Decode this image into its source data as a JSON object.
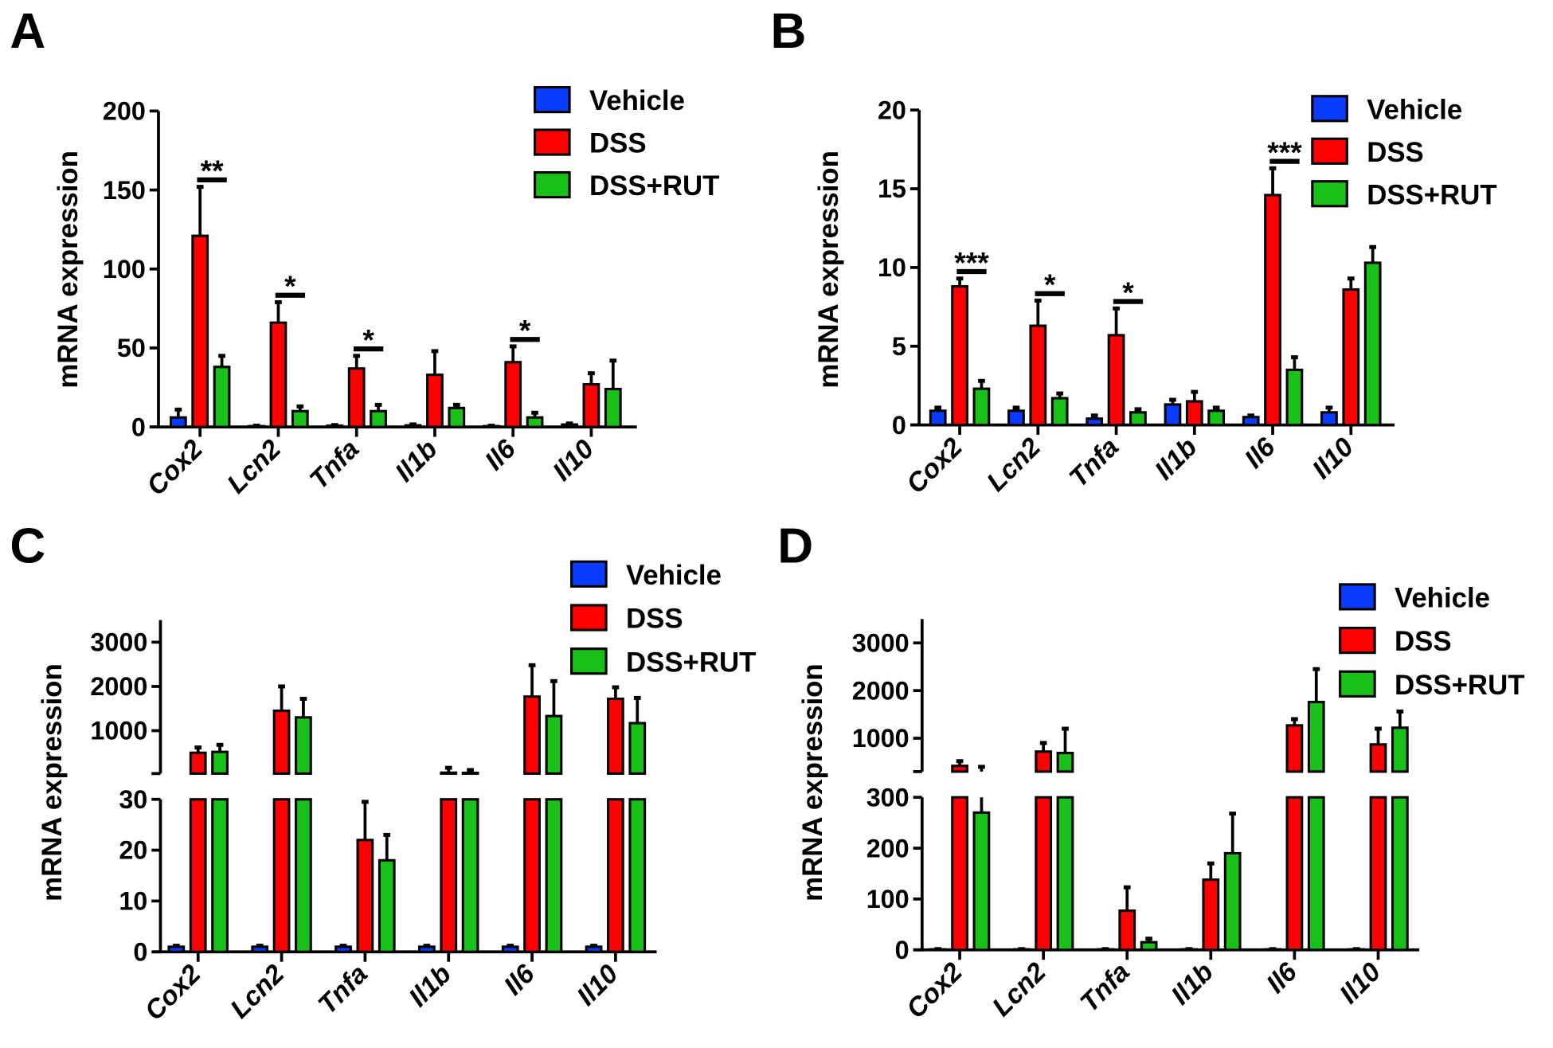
{
  "colors": {
    "Vehicle": "#0a3cff",
    "DSS": "#ff0000",
    "DSS+RUT": "#18c018",
    "axis": "#000000"
  },
  "legend": [
    "Vehicle",
    "DSS",
    "DSS+RUT"
  ],
  "chart_data": [
    {
      "panel": "A",
      "type": "bar",
      "ylabel": "mRNA expression",
      "categories": [
        "Cox2",
        "Lcn2",
        "Tnfa",
        "Il1b",
        "Il6",
        "Il10"
      ],
      "segments": [
        {
          "range": [
            0,
            200
          ],
          "ticks": [
            0,
            50,
            100,
            150,
            200
          ]
        }
      ],
      "series": [
        {
          "name": "Vehicle",
          "values": [
            6,
            0.5,
            0.8,
            1,
            0.5,
            1.5
          ],
          "error_top": [
            11,
            0.8,
            1.2,
            1.6,
            0.8,
            2.2
          ]
        },
        {
          "name": "DSS",
          "values": [
            121,
            66,
            37,
            33,
            41,
            27
          ],
          "error_top": [
            152,
            79,
            45,
            48,
            51,
            34
          ]
        },
        {
          "name": "DSS+RUT",
          "values": [
            38,
            10,
            10,
            12,
            6,
            24
          ],
          "error_top": [
            45,
            13,
            14,
            14,
            9,
            42
          ]
        }
      ],
      "significance": [
        {
          "category": "Cox2",
          "label": "**"
        },
        {
          "category": "Lcn2",
          "label": "*"
        },
        {
          "category": "Tnfa",
          "label": "*"
        },
        {
          "category": "Il6",
          "label": "*"
        }
      ]
    },
    {
      "panel": "B",
      "type": "bar",
      "ylabel": "mRNA expression",
      "categories": [
        "Cox2",
        "Lcn2",
        "Tnfa",
        "Il1b",
        "Il6",
        "Il10"
      ],
      "segments": [
        {
          "range": [
            0,
            20
          ],
          "ticks": [
            0,
            5,
            10,
            15,
            20
          ]
        }
      ],
      "series": [
        {
          "name": "Vehicle",
          "values": [
            0.9,
            0.9,
            0.4,
            1.3,
            0.5,
            0.8
          ],
          "error_top": [
            1.1,
            1.1,
            0.6,
            1.6,
            0.6,
            1.1
          ]
        },
        {
          "name": "DSS",
          "values": [
            8.8,
            6.3,
            5.7,
            1.5,
            14.6,
            8.6
          ],
          "error_top": [
            9.3,
            7.9,
            7.4,
            2.1,
            16.3,
            9.3
          ]
        },
        {
          "name": "DSS+RUT",
          "values": [
            2.3,
            1.7,
            0.8,
            0.9,
            3.5,
            10.3
          ],
          "error_top": [
            2.8,
            2.0,
            1.0,
            1.1,
            4.3,
            11.3
          ]
        }
      ],
      "significance": [
        {
          "category": "Cox2",
          "label": "***"
        },
        {
          "category": "Lcn2",
          "label": "*"
        },
        {
          "category": "Tnfa",
          "label": "*"
        },
        {
          "category": "Il6",
          "label": "***"
        }
      ]
    },
    {
      "panel": "C",
      "type": "bar",
      "ylabel": "mRNA expression",
      "axis_break": true,
      "categories": [
        "Cox2",
        "Lcn2",
        "Tnfa",
        "Il1b",
        "Il6",
        "Il10"
      ],
      "segments": [
        {
          "range": [
            0,
            30
          ],
          "ticks": [
            0,
            10,
            20,
            30
          ]
        },
        {
          "range": [
            30,
            3500
          ],
          "ticks": [
            1000,
            2000,
            3000
          ]
        }
      ],
      "series": [
        {
          "name": "Vehicle",
          "values": [
            1,
            1,
            1,
            1,
            1,
            1
          ],
          "error_top": [
            1.2,
            1.2,
            1.2,
            1.2,
            1.2,
            1.2
          ]
        },
        {
          "name": "DSS",
          "values": [
            500,
            1450,
            22,
            50,
            1770,
            1720
          ],
          "error_top": [
            620,
            2000,
            29.5,
            160,
            2480,
            1980
          ]
        },
        {
          "name": "DSS+RUT",
          "values": [
            520,
            1300,
            18,
            45,
            1330,
            1170
          ],
          "error_top": [
            680,
            1720,
            23,
            110,
            2120,
            1740
          ]
        }
      ],
      "significance": []
    },
    {
      "panel": "D",
      "type": "bar",
      "ylabel": "mRNA expression",
      "axis_break": true,
      "categories": [
        "Cox2",
        "Lcn2",
        "Tnfa",
        "Il1b",
        "Il6",
        "Il10"
      ],
      "segments": [
        {
          "range": [
            0,
            300
          ],
          "ticks": [
            0,
            100,
            200,
            300
          ]
        },
        {
          "range": [
            300,
            3500
          ],
          "ticks": [
            1000,
            2000,
            3000
          ]
        }
      ],
      "series": [
        {
          "name": "Vehicle",
          "values": [
            1,
            1,
            1,
            1,
            1,
            1
          ],
          "error_top": [
            1.5,
            1.5,
            1.5,
            1.5,
            1.5,
            1.5
          ]
        },
        {
          "name": "DSS",
          "values": [
            420,
            720,
            77,
            138,
            1270,
            870
          ],
          "error_top": [
            520,
            900,
            123,
            170,
            1400,
            1200
          ]
        },
        {
          "name": "DSS+RUT",
          "values": [
            270,
            690,
            15,
            190,
            1760,
            1220
          ],
          "error_top": [
            400,
            1200,
            22,
            268,
            2450,
            1560
          ]
        }
      ],
      "significance": []
    }
  ]
}
